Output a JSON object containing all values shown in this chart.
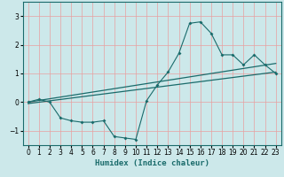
{
  "xlabel": "Humidex (Indice chaleur)",
  "xlim": [
    -0.5,
    23.5
  ],
  "ylim": [
    -1.5,
    3.5
  ],
  "yticks": [
    -1,
    0,
    1,
    2,
    3
  ],
  "xticks": [
    0,
    1,
    2,
    3,
    4,
    5,
    6,
    7,
    8,
    9,
    10,
    11,
    12,
    13,
    14,
    15,
    16,
    17,
    18,
    19,
    20,
    21,
    22,
    23
  ],
  "bg_color": "#cce8ea",
  "grid_color": "#e8a0a0",
  "line_color": "#1a6b6b",
  "zigzag_x": [
    0,
    1,
    2,
    3,
    4,
    5,
    6,
    7,
    8,
    9,
    10,
    11,
    12,
    13,
    14,
    15,
    16,
    17,
    18,
    19,
    20,
    21,
    22,
    23
  ],
  "zigzag_y": [
    0.0,
    0.1,
    0.0,
    -0.55,
    -0.65,
    -0.7,
    -0.7,
    -0.65,
    -1.2,
    -1.25,
    -1.3,
    0.05,
    0.6,
    1.05,
    1.7,
    2.75,
    2.8,
    2.4,
    1.65,
    1.65,
    1.3,
    1.65,
    1.3,
    1.0
  ],
  "trend_x": [
    0,
    23
  ],
  "trend_y": [
    -0.05,
    1.05
  ],
  "trend2_x": [
    0,
    23
  ],
  "trend2_y": [
    0.0,
    1.35
  ],
  "tick_fontsize": 5.5,
  "xlabel_fontsize": 6.5
}
